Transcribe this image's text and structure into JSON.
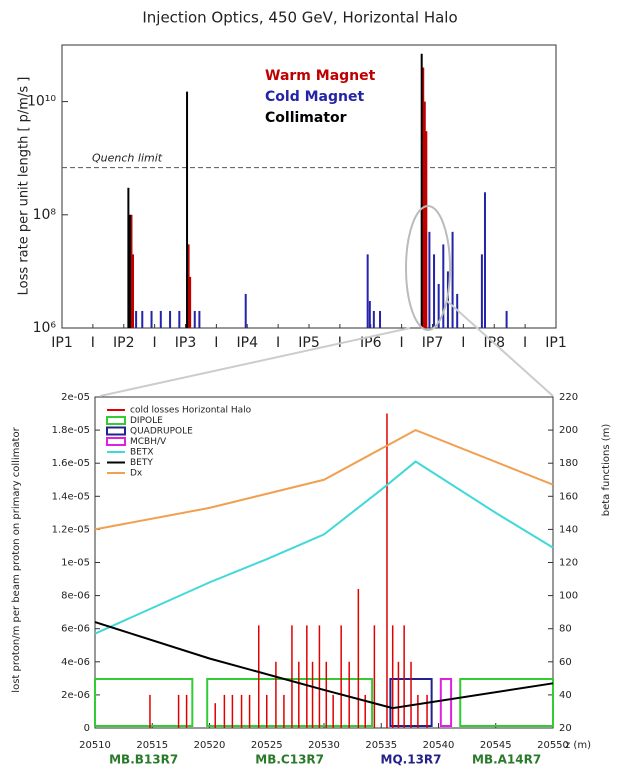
{
  "chart_data": [
    {
      "type": "bar",
      "title": "Injection Optics, 450 GeV, Horizontal Halo",
      "ylabel": "Loss rate per unit length [ p/m/s ]",
      "log_y": true,
      "ylim": [
        1000000,
        100000000000
      ],
      "yticks": [
        {
          "value": 1000000,
          "label": "10⁶"
        },
        {
          "value": 100000000,
          "label": "10⁸"
        },
        {
          "value": 10000000000,
          "label": "10¹⁰"
        }
      ],
      "xlim": [
        0,
        16
      ],
      "xticks": [
        {
          "value": 0,
          "label": "IP1"
        },
        {
          "value": 1,
          "label": "I"
        },
        {
          "value": 2,
          "label": "IP2"
        },
        {
          "value": 3,
          "label": "I"
        },
        {
          "value": 4,
          "label": "IP3"
        },
        {
          "value": 5,
          "label": "I"
        },
        {
          "value": 6,
          "label": "IP4"
        },
        {
          "value": 7,
          "label": "I"
        },
        {
          "value": 8,
          "label": "IP5"
        },
        {
          "value": 9,
          "label": "I"
        },
        {
          "value": 10,
          "label": "IP6"
        },
        {
          "value": 11,
          "label": "I"
        },
        {
          "value": 12,
          "label": "IP7"
        },
        {
          "value": 13,
          "label": "I"
        },
        {
          "value": 14,
          "label": "IP8"
        },
        {
          "value": 15,
          "label": "I"
        },
        {
          "value": 16,
          "label": "IP1"
        }
      ],
      "quench_limit": {
        "text": "Quench limit",
        "value": 680000000
      },
      "series": [
        {
          "name": "Warm Magnet",
          "color": "#c00000",
          "x": [
            2.25,
            2.3,
            4.1,
            4.15,
            11.7,
            11.75,
            11.8
          ],
          "values": [
            100000000,
            20000000,
            30000000,
            8000000,
            40000000000,
            10000000000,
            3000000000
          ]
        },
        {
          "name": "Cold Magnet",
          "color": "#2424a8",
          "x": [
            2.4,
            2.6,
            2.9,
            3.2,
            3.5,
            3.8,
            4.3,
            4.45,
            5.95,
            9.9,
            9.97,
            10.1,
            10.3,
            11.9,
            12.05,
            12.2,
            12.35,
            12.5,
            12.65,
            12.8,
            13.6,
            13.7,
            14.4
          ],
          "values": [
            2000000,
            2000000,
            2000000,
            2000000,
            2000000,
            2000000,
            2000000,
            2000000,
            4000000,
            20000000,
            3000000,
            2000000,
            2000000,
            50000000,
            20000000,
            6000000,
            30000000,
            10000000,
            50000000,
            4000000,
            20000000,
            250000000,
            2000000
          ]
        },
        {
          "name": "Collimator",
          "color": "#000000",
          "x": [
            2.15,
            2.2,
            4.05,
            11.65
          ],
          "values": [
            300000000,
            100000000,
            15000000000,
            70000000000
          ]
        }
      ]
    },
    {
      "type": "line",
      "ylabel": "lost proton/m per beam proton on primary collimator",
      "y2label": "beta functions (m)",
      "xlabel": "z (m)",
      "xlim": [
        20510,
        20550
      ],
      "xticks": [
        20510,
        20515,
        20520,
        20525,
        20530,
        20535,
        20540,
        20545,
        20550
      ],
      "ylim": [
        0,
        2e-05
      ],
      "yticks": [
        0,
        {
          "value": 2e-06,
          "label": "2e-06"
        },
        {
          "value": 4e-06,
          "label": "4e-06"
        },
        {
          "value": 6e-06,
          "label": "6e-06"
        },
        {
          "value": 8e-06,
          "label": "8e-06"
        },
        {
          "value": 1e-05,
          "label": "1e-05"
        },
        {
          "value": 1.2e-05,
          "label": "1.2e-05"
        },
        {
          "value": 1.4e-05,
          "label": "1.4e-05"
        },
        {
          "value": 1.6e-05,
          "label": "1.6e-05"
        },
        {
          "value": 1.8e-05,
          "label": "1.8e-05"
        },
        {
          "value": 2e-05,
          "label": "2e-05"
        }
      ],
      "y2lim": [
        20,
        220
      ],
      "y2ticks": [
        20,
        40,
        60,
        80,
        100,
        120,
        140,
        160,
        180,
        200,
        220
      ],
      "losses": {
        "name": "cold losses Horizontal Halo",
        "color": "#e00000",
        "x": [
          20514.8,
          20517.3,
          20518,
          20520.5,
          20521.3,
          20522,
          20522.8,
          20523.5,
          20524.3,
          20525,
          20525.8,
          20526.5,
          20527.2,
          20527.8,
          20528.5,
          20529,
          20529.6,
          20530.2,
          20530.8,
          20531.5,
          20532.2,
          20533,
          20533.6,
          20534.4,
          20535.5,
          20536,
          20536.5,
          20537,
          20537.6,
          20538.2,
          20539
        ],
        "values": [
          2e-06,
          2e-06,
          2e-06,
          1.5e-06,
          2e-06,
          2e-06,
          2e-06,
          2e-06,
          6.2e-06,
          2e-06,
          4e-06,
          2e-06,
          6.2e-06,
          4e-06,
          6.2e-06,
          4e-06,
          6.2e-06,
          4e-06,
          2e-06,
          6.2e-06,
          4e-06,
          8.4e-06,
          2e-06,
          6.2e-06,
          1.9e-05,
          6.2e-06,
          4e-06,
          6.2e-06,
          4e-06,
          2e-06,
          2e-06
        ]
      },
      "element_legend": [
        {
          "name": "DIPOLE",
          "color": "#33cc33"
        },
        {
          "name": "QUADRUPOLE",
          "color": "#22228a"
        },
        {
          "name": "MCBH/V",
          "color": "#e020e0"
        }
      ],
      "elements": [
        {
          "type": 0,
          "label": "MB.B13R7",
          "start": 20510,
          "end": 20518.5
        },
        {
          "type": 0,
          "label": "MB.C13R7",
          "start": 20519.8,
          "end": 20534.2
        },
        {
          "type": 1,
          "label": "MQ.13R7",
          "start": 20535.8,
          "end": 20539.4
        },
        {
          "type": 2,
          "start": 20540.2,
          "end": 20541.1
        },
        {
          "type": 0,
          "label": "MB.A14R7",
          "start": 20541.9,
          "end": 20550
        }
      ],
      "series": [
        {
          "name": "BETX",
          "color": "#40d8d8",
          "axis": "y2",
          "x": [
            20510,
            20520,
            20525,
            20530,
            20535,
            20538,
            20545,
            20550
          ],
          "values": [
            77,
            108,
            122,
            137,
            164,
            181,
            150,
            129
          ]
        },
        {
          "name": "BETY",
          "color": "#000000",
          "axis": "y2",
          "x": [
            20510,
            20520,
            20530,
            20536,
            20550
          ],
          "values": [
            84,
            62,
            43,
            32,
            47
          ]
        },
        {
          "name": "Dx",
          "color": "#f0a050",
          "axis": "y2",
          "x": [
            20510,
            20520,
            20530,
            20538,
            20550
          ],
          "values": [
            140,
            153,
            170,
            200,
            167
          ]
        }
      ]
    }
  ]
}
